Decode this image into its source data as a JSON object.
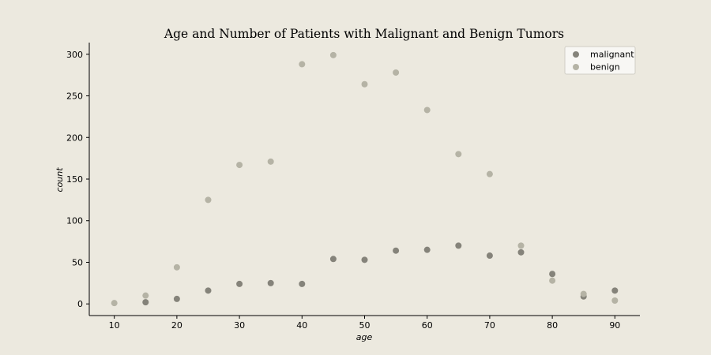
{
  "chart_data": {
    "type": "scatter",
    "title": "Age and Number of Patients with Malignant and Benign Tumors",
    "xlabel": "age",
    "ylabel": "count",
    "xlim": [
      6,
      94
    ],
    "ylim": [
      -14,
      314
    ],
    "xticks": [
      10,
      20,
      30,
      40,
      50,
      60,
      70,
      80,
      90
    ],
    "yticks": [
      0,
      50,
      100,
      150,
      200,
      250,
      300
    ],
    "grid": false,
    "legend_position": "top-right",
    "series": [
      {
        "name": "malignant",
        "color": "#85837a",
        "x": [
          15,
          20,
          25,
          30,
          35,
          40,
          45,
          50,
          55,
          60,
          65,
          70,
          75,
          80,
          85,
          90
        ],
        "y": [
          2,
          6,
          16,
          24,
          25,
          24,
          54,
          53,
          64,
          65,
          70,
          58,
          62,
          36,
          9,
          16
        ]
      },
      {
        "name": "benign",
        "color": "#b5b3a5",
        "x": [
          10,
          15,
          20,
          25,
          30,
          35,
          40,
          45,
          50,
          55,
          60,
          65,
          70,
          75,
          80,
          85,
          90
        ],
        "y": [
          1,
          10,
          44,
          125,
          167,
          171,
          288,
          299,
          264,
          278,
          233,
          180,
          156,
          70,
          28,
          12,
          4
        ]
      }
    ]
  }
}
